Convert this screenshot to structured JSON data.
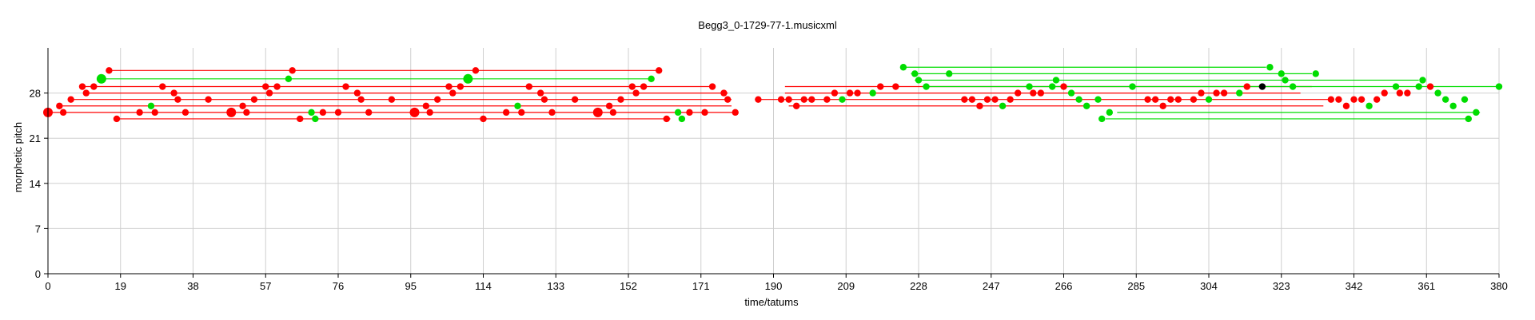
{
  "chart_data": {
    "type": "scatter",
    "title": "Begg3_0-1729-77-1.musicxml",
    "xlabel": "time/tatums",
    "ylabel": "morphetic pitch",
    "xlim": [
      0,
      380
    ],
    "ylim": [
      0,
      35
    ],
    "x_ticks": [
      "0",
      "19",
      "38",
      "57",
      "76",
      "95",
      "114",
      "133",
      "152",
      "171",
      "190",
      "209",
      "228",
      "247",
      "266",
      "285",
      "304",
      "323",
      "342",
      "361",
      "380"
    ],
    "y_ticks": [
      "0",
      "7",
      "14",
      "21",
      "28"
    ],
    "grid": true,
    "colors": {
      "red": "#ff0000",
      "green": "#00dd00",
      "black": "#000000"
    },
    "segments": [
      {
        "color": "red",
        "x1": 16,
        "x2": 160,
        "y": 31.5
      },
      {
        "color": "green",
        "x1": 14,
        "x2": 158,
        "y": 30.2
      },
      {
        "color": "red",
        "x1": 9,
        "x2": 174,
        "y": 29
      },
      {
        "color": "red",
        "x1": 10,
        "x2": 178,
        "y": 28
      },
      {
        "color": "red",
        "x1": 6,
        "x2": 179,
        "y": 27
      },
      {
        "color": "red",
        "x1": 3,
        "x2": 179,
        "y": 26
      },
      {
        "color": "red",
        "x1": 0,
        "x2": 180,
        "y": 25
      },
      {
        "color": "red",
        "x1": 18,
        "x2": 163,
        "y": 24
      },
      {
        "color": "red",
        "x1": 193,
        "x2": 331,
        "y": 29
      },
      {
        "color": "red",
        "x1": 193,
        "x2": 328,
        "y": 28
      },
      {
        "color": "red",
        "x1": 186,
        "x2": 336,
        "y": 27
      },
      {
        "color": "red",
        "x1": 194,
        "x2": 334,
        "y": 26
      },
      {
        "color": "green",
        "x1": 224,
        "x2": 319,
        "y": 32
      },
      {
        "color": "green",
        "x1": 226,
        "x2": 331,
        "y": 31
      },
      {
        "color": "green",
        "x1": 227,
        "x2": 359,
        "y": 30
      },
      {
        "color": "green",
        "x1": 229,
        "x2": 380,
        "y": 29
      },
      {
        "color": "green",
        "x1": 280,
        "x2": 375,
        "y": 25
      },
      {
        "color": "green",
        "x1": 277,
        "x2": 372,
        "y": 24
      }
    ],
    "points": [
      {
        "x": 0,
        "y": 25,
        "c": "red",
        "s": "big"
      },
      {
        "x": 3,
        "y": 26,
        "c": "red"
      },
      {
        "x": 4,
        "y": 25,
        "c": "red"
      },
      {
        "x": 6,
        "y": 27,
        "c": "red"
      },
      {
        "x": 9,
        "y": 29,
        "c": "red"
      },
      {
        "x": 10,
        "y": 28,
        "c": "red"
      },
      {
        "x": 12,
        "y": 29,
        "c": "red"
      },
      {
        "x": 14,
        "y": 30.2,
        "c": "green",
        "s": "big"
      },
      {
        "x": 16,
        "y": 31.5,
        "c": "red"
      },
      {
        "x": 18,
        "y": 24,
        "c": "red"
      },
      {
        "x": 24,
        "y": 25,
        "c": "red"
      },
      {
        "x": 27,
        "y": 26,
        "c": "green"
      },
      {
        "x": 28,
        "y": 25,
        "c": "red"
      },
      {
        "x": 30,
        "y": 29,
        "c": "red"
      },
      {
        "x": 33,
        "y": 28,
        "c": "red"
      },
      {
        "x": 34,
        "y": 27,
        "c": "red"
      },
      {
        "x": 36,
        "y": 25,
        "c": "red"
      },
      {
        "x": 42,
        "y": 27,
        "c": "red"
      },
      {
        "x": 48,
        "y": 25,
        "c": "red",
        "s": "big"
      },
      {
        "x": 51,
        "y": 26,
        "c": "red"
      },
      {
        "x": 52,
        "y": 25,
        "c": "red"
      },
      {
        "x": 54,
        "y": 27,
        "c": "red"
      },
      {
        "x": 57,
        "y": 29,
        "c": "red"
      },
      {
        "x": 58,
        "y": 28,
        "c": "red"
      },
      {
        "x": 60,
        "y": 29,
        "c": "red"
      },
      {
        "x": 63,
        "y": 30.2,
        "c": "green"
      },
      {
        "x": 64,
        "y": 31.5,
        "c": "red"
      },
      {
        "x": 66,
        "y": 24,
        "c": "red"
      },
      {
        "x": 69,
        "y": 25,
        "c": "green"
      },
      {
        "x": 70,
        "y": 24,
        "c": "green"
      },
      {
        "x": 72,
        "y": 25,
        "c": "red"
      },
      {
        "x": 76,
        "y": 25,
        "c": "red"
      },
      {
        "x": 78,
        "y": 29,
        "c": "red"
      },
      {
        "x": 81,
        "y": 28,
        "c": "red"
      },
      {
        "x": 82,
        "y": 27,
        "c": "red"
      },
      {
        "x": 84,
        "y": 25,
        "c": "red"
      },
      {
        "x": 90,
        "y": 27,
        "c": "red"
      },
      {
        "x": 96,
        "y": 25,
        "c": "red",
        "s": "big"
      },
      {
        "x": 99,
        "y": 26,
        "c": "red"
      },
      {
        "x": 100,
        "y": 25,
        "c": "red"
      },
      {
        "x": 102,
        "y": 27,
        "c": "red"
      },
      {
        "x": 105,
        "y": 29,
        "c": "red"
      },
      {
        "x": 106,
        "y": 28,
        "c": "red"
      },
      {
        "x": 108,
        "y": 29,
        "c": "red"
      },
      {
        "x": 110,
        "y": 30.2,
        "c": "green",
        "s": "big"
      },
      {
        "x": 112,
        "y": 31.5,
        "c": "red"
      },
      {
        "x": 114,
        "y": 24,
        "c": "red"
      },
      {
        "x": 120,
        "y": 25,
        "c": "red"
      },
      {
        "x": 123,
        "y": 26,
        "c": "green"
      },
      {
        "x": 124,
        "y": 25,
        "c": "red"
      },
      {
        "x": 126,
        "y": 29,
        "c": "red"
      },
      {
        "x": 129,
        "y": 28,
        "c": "red"
      },
      {
        "x": 130,
        "y": 27,
        "c": "red"
      },
      {
        "x": 132,
        "y": 25,
        "c": "red"
      },
      {
        "x": 138,
        "y": 27,
        "c": "red"
      },
      {
        "x": 144,
        "y": 25,
        "c": "red",
        "s": "big"
      },
      {
        "x": 147,
        "y": 26,
        "c": "red"
      },
      {
        "x": 148,
        "y": 25,
        "c": "red"
      },
      {
        "x": 150,
        "y": 27,
        "c": "red"
      },
      {
        "x": 153,
        "y": 29,
        "c": "red"
      },
      {
        "x": 154,
        "y": 28,
        "c": "red"
      },
      {
        "x": 156,
        "y": 29,
        "c": "red"
      },
      {
        "x": 158,
        "y": 30.2,
        "c": "green"
      },
      {
        "x": 160,
        "y": 31.5,
        "c": "red"
      },
      {
        "x": 162,
        "y": 24,
        "c": "red"
      },
      {
        "x": 165,
        "y": 25,
        "c": "green"
      },
      {
        "x": 166,
        "y": 24,
        "c": "green"
      },
      {
        "x": 168,
        "y": 25,
        "c": "red"
      },
      {
        "x": 172,
        "y": 25,
        "c": "red"
      },
      {
        "x": 174,
        "y": 29,
        "c": "red"
      },
      {
        "x": 177,
        "y": 28,
        "c": "red"
      },
      {
        "x": 178,
        "y": 27,
        "c": "red"
      },
      {
        "x": 180,
        "y": 25,
        "c": "red"
      },
      {
        "x": 186,
        "y": 27,
        "c": "red"
      },
      {
        "x": 192,
        "y": 27,
        "c": "red"
      },
      {
        "x": 194,
        "y": 27,
        "c": "red"
      },
      {
        "x": 196,
        "y": 26,
        "c": "red"
      },
      {
        "x": 198,
        "y": 27,
        "c": "red"
      },
      {
        "x": 200,
        "y": 27,
        "c": "red"
      },
      {
        "x": 204,
        "y": 27,
        "c": "red"
      },
      {
        "x": 206,
        "y": 28,
        "c": "red"
      },
      {
        "x": 208,
        "y": 27,
        "c": "green"
      },
      {
        "x": 210,
        "y": 28,
        "c": "red"
      },
      {
        "x": 212,
        "y": 28,
        "c": "red"
      },
      {
        "x": 216,
        "y": 28,
        "c": "green"
      },
      {
        "x": 218,
        "y": 29,
        "c": "red"
      },
      {
        "x": 222,
        "y": 29,
        "c": "red"
      },
      {
        "x": 224,
        "y": 32,
        "c": "green"
      },
      {
        "x": 227,
        "y": 31,
        "c": "green"
      },
      {
        "x": 228,
        "y": 30,
        "c": "green"
      },
      {
        "x": 230,
        "y": 29,
        "c": "green"
      },
      {
        "x": 236,
        "y": 31,
        "c": "green"
      },
      {
        "x": 240,
        "y": 27,
        "c": "red"
      },
      {
        "x": 242,
        "y": 27,
        "c": "red"
      },
      {
        "x": 244,
        "y": 26,
        "c": "red"
      },
      {
        "x": 246,
        "y": 27,
        "c": "red"
      },
      {
        "x": 248,
        "y": 27,
        "c": "red"
      },
      {
        "x": 250,
        "y": 26,
        "c": "green"
      },
      {
        "x": 252,
        "y": 27,
        "c": "red"
      },
      {
        "x": 254,
        "y": 28,
        "c": "red"
      },
      {
        "x": 257,
        "y": 29,
        "c": "green"
      },
      {
        "x": 258,
        "y": 28,
        "c": "red"
      },
      {
        "x": 260,
        "y": 28,
        "c": "red"
      },
      {
        "x": 263,
        "y": 29,
        "c": "green"
      },
      {
        "x": 264,
        "y": 30,
        "c": "green"
      },
      {
        "x": 266,
        "y": 29,
        "c": "red"
      },
      {
        "x": 268,
        "y": 28,
        "c": "green"
      },
      {
        "x": 270,
        "y": 27,
        "c": "green"
      },
      {
        "x": 272,
        "y": 26,
        "c": "green"
      },
      {
        "x": 275,
        "y": 27,
        "c": "green"
      },
      {
        "x": 276,
        "y": 24,
        "c": "green"
      },
      {
        "x": 278,
        "y": 25,
        "c": "green"
      },
      {
        "x": 284,
        "y": 29,
        "c": "green"
      },
      {
        "x": 288,
        "y": 27,
        "c": "red"
      },
      {
        "x": 290,
        "y": 27,
        "c": "red"
      },
      {
        "x": 292,
        "y": 26,
        "c": "red"
      },
      {
        "x": 294,
        "y": 27,
        "c": "red"
      },
      {
        "x": 296,
        "y": 27,
        "c": "red"
      },
      {
        "x": 300,
        "y": 27,
        "c": "red"
      },
      {
        "x": 302,
        "y": 28,
        "c": "red"
      },
      {
        "x": 304,
        "y": 27,
        "c": "green"
      },
      {
        "x": 306,
        "y": 28,
        "c": "red"
      },
      {
        "x": 308,
        "y": 28,
        "c": "red"
      },
      {
        "x": 312,
        "y": 28,
        "c": "green"
      },
      {
        "x": 314,
        "y": 29,
        "c": "red"
      },
      {
        "x": 318,
        "y": 29,
        "c": "black"
      },
      {
        "x": 320,
        "y": 32,
        "c": "green"
      },
      {
        "x": 323,
        "y": 31,
        "c": "green"
      },
      {
        "x": 324,
        "y": 30,
        "c": "green"
      },
      {
        "x": 326,
        "y": 29,
        "c": "green"
      },
      {
        "x": 332,
        "y": 31,
        "c": "green"
      },
      {
        "x": 336,
        "y": 27,
        "c": "red"
      },
      {
        "x": 338,
        "y": 27,
        "c": "red"
      },
      {
        "x": 340,
        "y": 26,
        "c": "red"
      },
      {
        "x": 342,
        "y": 27,
        "c": "red"
      },
      {
        "x": 344,
        "y": 27,
        "c": "red"
      },
      {
        "x": 346,
        "y": 26,
        "c": "green"
      },
      {
        "x": 348,
        "y": 27,
        "c": "red"
      },
      {
        "x": 350,
        "y": 28,
        "c": "red"
      },
      {
        "x": 353,
        "y": 29,
        "c": "green"
      },
      {
        "x": 354,
        "y": 28,
        "c": "red"
      },
      {
        "x": 356,
        "y": 28,
        "c": "red"
      },
      {
        "x": 359,
        "y": 29,
        "c": "green"
      },
      {
        "x": 360,
        "y": 30,
        "c": "green"
      },
      {
        "x": 362,
        "y": 29,
        "c": "red"
      },
      {
        "x": 364,
        "y": 28,
        "c": "green"
      },
      {
        "x": 366,
        "y": 27,
        "c": "green"
      },
      {
        "x": 368,
        "y": 26,
        "c": "green"
      },
      {
        "x": 371,
        "y": 27,
        "c": "green"
      },
      {
        "x": 372,
        "y": 24,
        "c": "green"
      },
      {
        "x": 374,
        "y": 25,
        "c": "green"
      },
      {
        "x": 380,
        "y": 29,
        "c": "green"
      }
    ]
  }
}
